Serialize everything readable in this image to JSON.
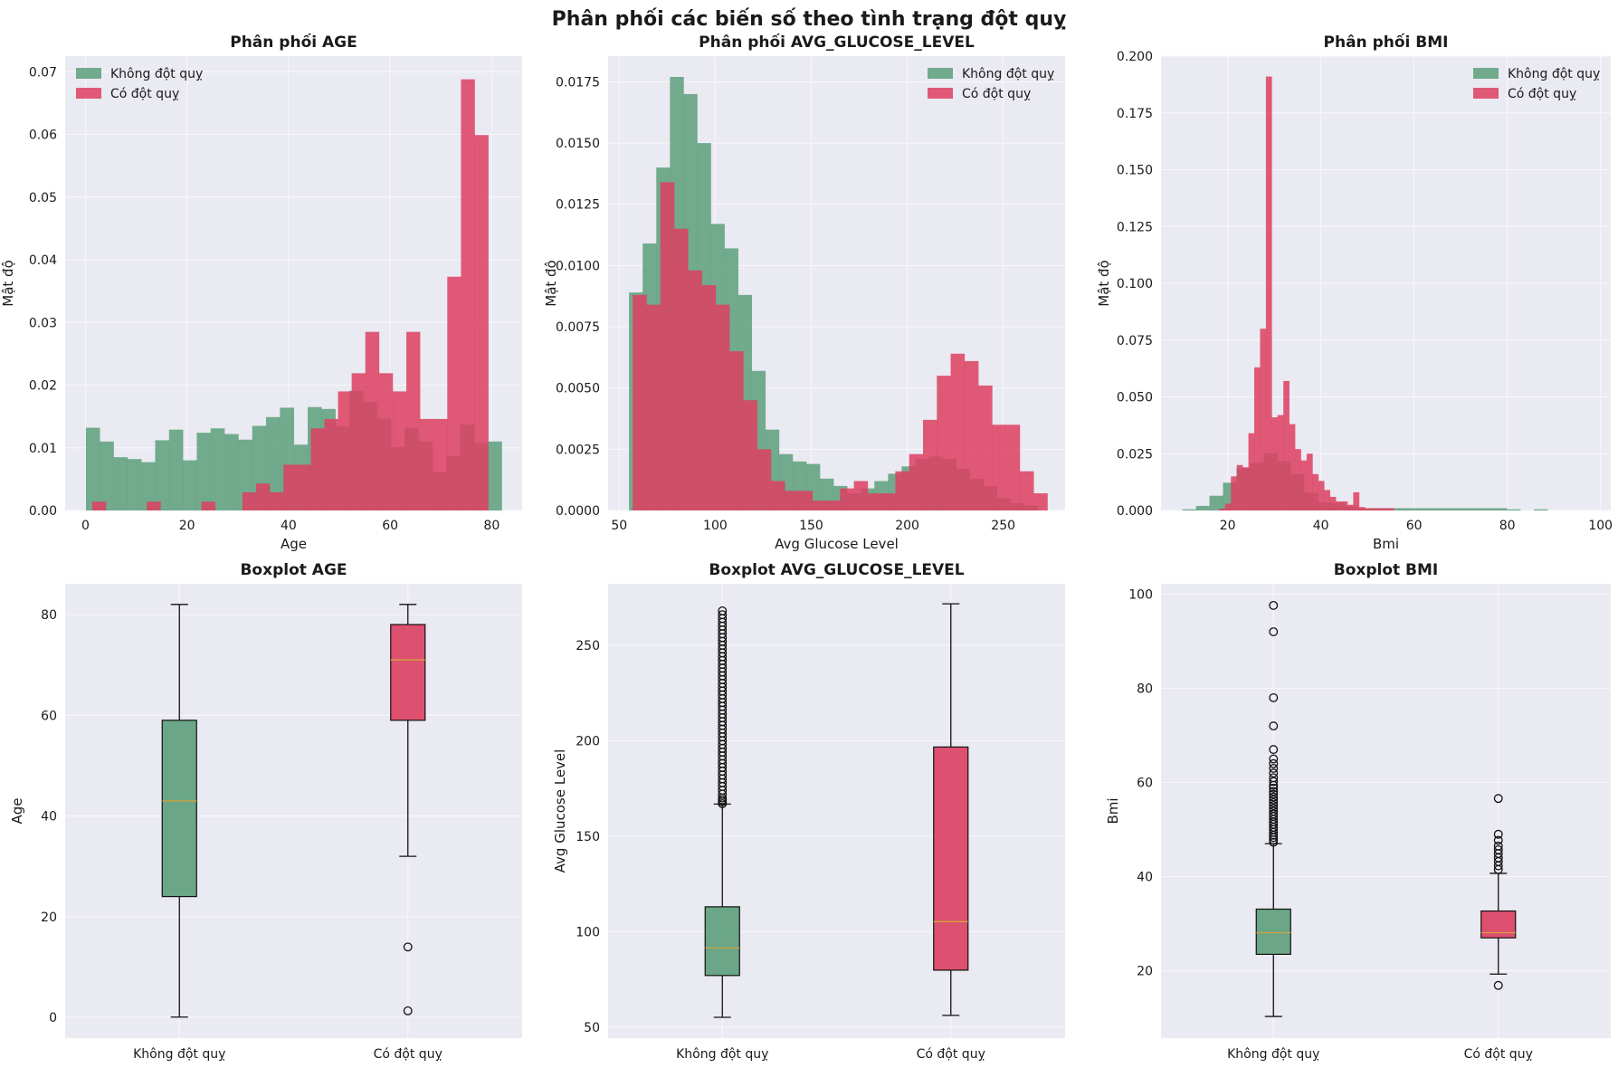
{
  "figure": {
    "suptitle": "Phân phối các biến số theo tình trạng đột quỵ",
    "colors": {
      "panel_bg": "#eaeaf2",
      "grid": "#f7f7fb",
      "no_stroke": "#5c9f7b",
      "stroke": "#dd3f61",
      "median": "#d2a33a"
    }
  },
  "chart_data": [
    {
      "type": "histogram",
      "title": "Phân phối AGE",
      "xlabel": "Age",
      "ylabel": "Mật độ",
      "xlim": [
        -4,
        86
      ],
      "ylim": [
        0,
        0.0725
      ],
      "xticks": [
        0,
        20,
        40,
        60,
        80
      ],
      "yticks": [
        0.0,
        0.01,
        0.02,
        0.03,
        0.04,
        0.05,
        0.06,
        0.07
      ],
      "ytick_labels": [
        "0.00",
        "0.01",
        "0.02",
        "0.03",
        "0.04",
        "0.05",
        "0.06",
        "0.07"
      ],
      "legend": "top-left",
      "series": [
        {
          "name": "Không đột quỵ",
          "color": "#5c9f7b",
          "bin_start": 0.08,
          "bin_width": 2.73,
          "values": [
            0.0132,
            0.011,
            0.0085,
            0.0082,
            0.0077,
            0.0112,
            0.0129,
            0.008,
            0.0124,
            0.0131,
            0.0122,
            0.0113,
            0.0135,
            0.0149,
            0.0164,
            0.0105,
            0.0165,
            0.0162,
            0.0134,
            0.0191,
            0.0173,
            0.0147,
            0.0101,
            0.0132,
            0.011,
            0.0061,
            0.0087,
            0.0137,
            0.0108,
            0.011
          ]
        },
        {
          "name": "Có đột quỵ",
          "color": "#dd3f61",
          "bin_start": 1.32,
          "bin_width": 2.69,
          "values": [
            0.0014,
            0,
            0,
            0,
            0.0014,
            0,
            0,
            0,
            0.0014,
            0,
            0,
            0.0029,
            0.0043,
            0.0029,
            0.0073,
            0.0073,
            0.0131,
            0.0146,
            0.019,
            0.0219,
            0.0285,
            0.0219,
            0.019,
            0.0285,
            0.0146,
            0.0146,
            0.0373,
            0.0688,
            0.0599,
            0
          ]
        }
      ]
    },
    {
      "type": "histogram",
      "title": "Phân phối AVG_GLUCOSE_LEVEL",
      "xlabel": "Avg Glucose Level",
      "ylabel": "Mật độ",
      "xlim": [
        44.2,
        282.2
      ],
      "ylim": [
        0,
        0.01855
      ],
      "xticks": [
        50,
        100,
        150,
        200,
        250
      ],
      "yticks": [
        0.0,
        0.0025,
        0.005,
        0.0075,
        0.01,
        0.0125,
        0.015,
        0.0175
      ],
      "ytick_labels": [
        "0.0000",
        "0.0025",
        "0.0050",
        "0.0075",
        "0.0100",
        "0.0125",
        "0.0150",
        "0.0175"
      ],
      "legend": "top-right",
      "series": [
        {
          "name": "Không đột quỵ",
          "color": "#5c9f7b",
          "bin_start": 55.1,
          "bin_width": 7.1,
          "values": [
            0.0089,
            0.0109,
            0.014,
            0.0177,
            0.017,
            0.015,
            0.0117,
            0.0107,
            0.0088,
            0.0057,
            0.0033,
            0.0023,
            0.002,
            0.0019,
            0.0013,
            0.001,
            0.0007,
            0.0009,
            0.0012,
            0.0015,
            0.0018,
            0.0021,
            0.0022,
            0.0021,
            0.0017,
            0.0013,
            0.001,
            0.0005,
            0.0003,
            0.0002
          ]
        },
        {
          "name": "Có đột quỵ",
          "color": "#dd3f61",
          "bin_start": 57.0,
          "bin_width": 7.2,
          "values": [
            0.0088,
            0.0084,
            0.0134,
            0.0115,
            0.0098,
            0.0092,
            0.0084,
            0.0065,
            0.0045,
            0.0025,
            0.0012,
            0.0008,
            0.0008,
            0.0004,
            0.0004,
            0.0009,
            0.0012,
            0.0007,
            0.0007,
            0.0016,
            0.0023,
            0.0037,
            0.0055,
            0.0064,
            0.0061,
            0.0051,
            0.0035,
            0.0035,
            0.0016,
            0.0007
          ]
        }
      ]
    },
    {
      "type": "histogram",
      "title": "Phân phối BMI",
      "xlabel": "Bmi",
      "ylabel": "Mật độ",
      "xlim": [
        5.7,
        102.2
      ],
      "ylim": [
        0,
        0.2
      ],
      "xticks": [
        20,
        40,
        60,
        80,
        100
      ],
      "yticks": [
        0.0,
        0.025,
        0.05,
        0.075,
        0.1,
        0.125,
        0.15,
        0.175,
        0.2
      ],
      "ytick_labels": [
        "0.000",
        "0.025",
        "0.050",
        "0.075",
        "0.100",
        "0.125",
        "0.150",
        "0.175",
        "0.200"
      ],
      "legend": "top-right",
      "series": [
        {
          "name": "Không đột quỵ",
          "color": "#5c9f7b",
          "bin_start": 10.3,
          "bin_width": 2.9,
          "values": [
            0.0005,
            0.002,
            0.0065,
            0.0122,
            0.0186,
            0.021,
            0.0252,
            0.0217,
            0.016,
            0.0078,
            0.0035,
            0.0032,
            0.0018,
            0.001,
            0.001,
            0.001,
            0.001,
            0.001,
            0.001,
            0.001,
            0.001,
            0.001,
            0.001,
            0.001,
            0.0005,
            0,
            0.0005,
            0,
            0,
            0
          ]
        },
        {
          "name": "Có đột quỵ",
          "color": "#dd3f61",
          "bin_start": 18.2,
          "bin_width": 1.25,
          "values": [
            0.0008,
            0.003,
            0.015,
            0.02,
            0.019,
            0.034,
            0.063,
            0.08,
            0.191,
            0.041,
            0.042,
            0.057,
            0.038,
            0.027,
            0.022,
            0.025,
            0.016,
            0.013,
            0.009,
            0.006,
            0.004,
            0.004,
            0.0025,
            0.008,
            0.0015,
            0.001,
            0.001,
            0.001,
            0.001,
            0.001
          ]
        }
      ]
    },
    {
      "type": "boxplot",
      "title": "Boxplot AGE",
      "xlabel": "",
      "ylabel": "Age",
      "ylim": [
        -4.1,
        86.1
      ],
      "yticks": [
        0,
        20,
        40,
        60,
        80
      ],
      "categories": [
        "Không đột quỵ",
        "Có đột quỵ"
      ],
      "boxes": [
        {
          "name": "Không đột quỵ",
          "color": "#5c9f7b",
          "whislo": 0.08,
          "q1": 24,
          "median": 43,
          "q3": 59,
          "whishi": 82,
          "fliers": []
        },
        {
          "name": "Có đột quỵ",
          "color": "#dd3f61",
          "whislo": 32,
          "q1": 59,
          "median": 71,
          "q3": 78,
          "whishi": 82,
          "fliers": [
            14,
            1.32
          ]
        }
      ]
    },
    {
      "type": "boxplot",
      "title": "Boxplot AVG_GLUCOSE_LEVEL",
      "xlabel": "",
      "ylabel": "Avg Glucose Level",
      "ylim": [
        44.2,
        282.2
      ],
      "yticks": [
        50,
        100,
        150,
        200,
        250
      ],
      "categories": [
        "Không đột quỵ",
        "Có đột quỵ"
      ],
      "boxes": [
        {
          "name": "Không đột quỵ",
          "color": "#5c9f7b",
          "whislo": 55.1,
          "q1": 77,
          "median": 91.5,
          "q3": 113,
          "whishi": 166.8,
          "fliers": [
            167,
            168,
            169,
            170,
            172,
            174,
            176,
            178,
            180,
            182,
            184,
            186,
            188,
            190,
            192,
            194,
            196,
            198,
            200,
            202,
            204,
            206,
            208,
            210,
            212,
            214,
            216,
            218,
            220,
            222,
            224,
            226,
            228,
            230,
            232,
            234,
            236,
            238,
            240,
            242,
            244,
            246,
            248,
            250,
            252,
            254,
            256,
            258,
            260,
            262,
            264,
            266,
            268
          ]
        },
        {
          "name": "Có đột quỵ",
          "color": "#dd3f61",
          "whislo": 56.1,
          "q1": 79.8,
          "median": 105.2,
          "q3": 196.7,
          "whishi": 271.7,
          "fliers": []
        }
      ]
    },
    {
      "type": "boxplot",
      "title": "Boxplot BMI",
      "xlabel": "",
      "ylabel": "Bmi",
      "ylim": [
        5.7,
        102.2
      ],
      "yticks": [
        20,
        40,
        60,
        80,
        100
      ],
      "categories": [
        "Không đột quỵ",
        "Có đột quỵ"
      ],
      "boxes": [
        {
          "name": "Không đột quỵ",
          "color": "#5c9f7b",
          "whislo": 10.3,
          "q1": 23.5,
          "median": 28.1,
          "q3": 33.1,
          "whishi": 47,
          "fliers": [
            47.3,
            47.8,
            48.3,
            48.8,
            49.4,
            50.0,
            50.5,
            51.1,
            51.6,
            52.2,
            52.8,
            53.3,
            53.9,
            54.5,
            55.1,
            55.7,
            56.3,
            56.9,
            57.5,
            58.1,
            58.8,
            59.4,
            60.2,
            61.0,
            62.0,
            63.0,
            64.0,
            65.0,
            67.0,
            72.0,
            78.0,
            92.0,
            97.6
          ]
        },
        {
          "name": "Có đột quỵ",
          "color": "#dd3f61",
          "whislo": 19.3,
          "q1": 27,
          "median": 28.1,
          "q3": 32.7,
          "whishi": 40.7,
          "fliers": [
            16.9,
            41.5,
            42.3,
            43.2,
            44.0,
            44.9,
            45.7,
            46.5,
            47.7,
            49.0,
            56.6
          ]
        }
      ]
    }
  ]
}
